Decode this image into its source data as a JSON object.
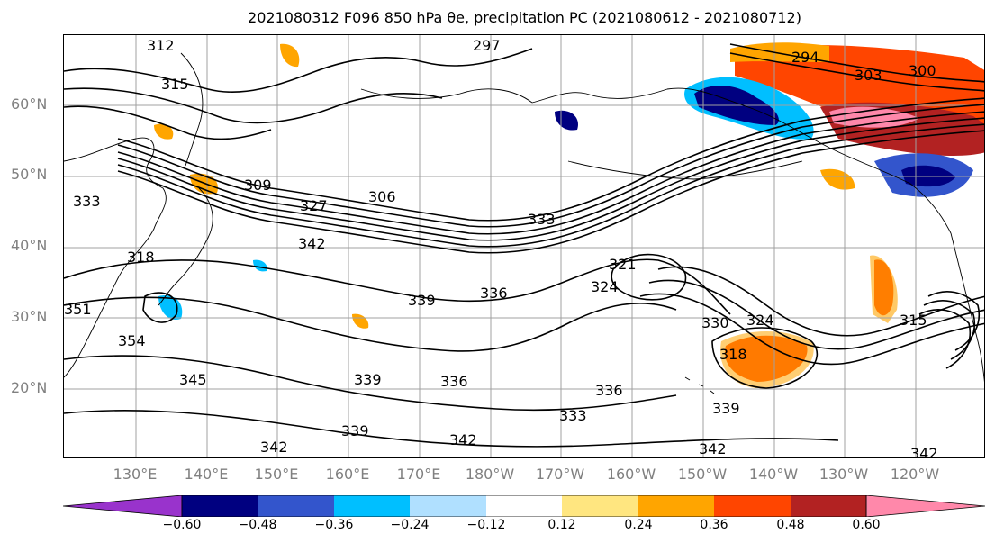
{
  "title": "2021080312 F096 850 hPa θe, precipitation PC (2021080612 - 2021080712)",
  "map": {
    "lat_labels": [
      "60°N",
      "50°N",
      "40°N",
      "30°N",
      "20°N"
    ],
    "lon_labels": [
      "130°E",
      "140°E",
      "150°E",
      "160°E",
      "170°E",
      "180°W",
      "170°W",
      "160°W",
      "150°W",
      "140°W",
      "130°W",
      "120°W"
    ],
    "contour_labels": [
      "312",
      "297",
      "294",
      "303",
      "300",
      "315",
      "333",
      "309",
      "306",
      "327",
      "318",
      "333",
      "342",
      "321",
      "324",
      "336",
      "339",
      "351",
      "354",
      "330",
      "324",
      "315",
      "318",
      "345",
      "339",
      "336",
      "336",
      "333",
      "339",
      "342",
      "339",
      "342",
      "342",
      "342"
    ],
    "colors": {
      "contour": "#000000",
      "gridline": "#a0a0a0",
      "coastline": "#000000"
    }
  },
  "colorbar": {
    "tick_labels": [
      "−0.60",
      "−0.48",
      "−0.36",
      "−0.24",
      "−0.12",
      "0.12",
      "0.24",
      "0.36",
      "0.48",
      "0.60"
    ],
    "colors": [
      "#9933cc",
      "#000080",
      "#3355cc",
      "#00bfff",
      "#b0e0ff",
      "#ffffff",
      "#ffe680",
      "#ffa500",
      "#ff4500",
      "#b22222",
      "#ff88aa"
    ]
  }
}
